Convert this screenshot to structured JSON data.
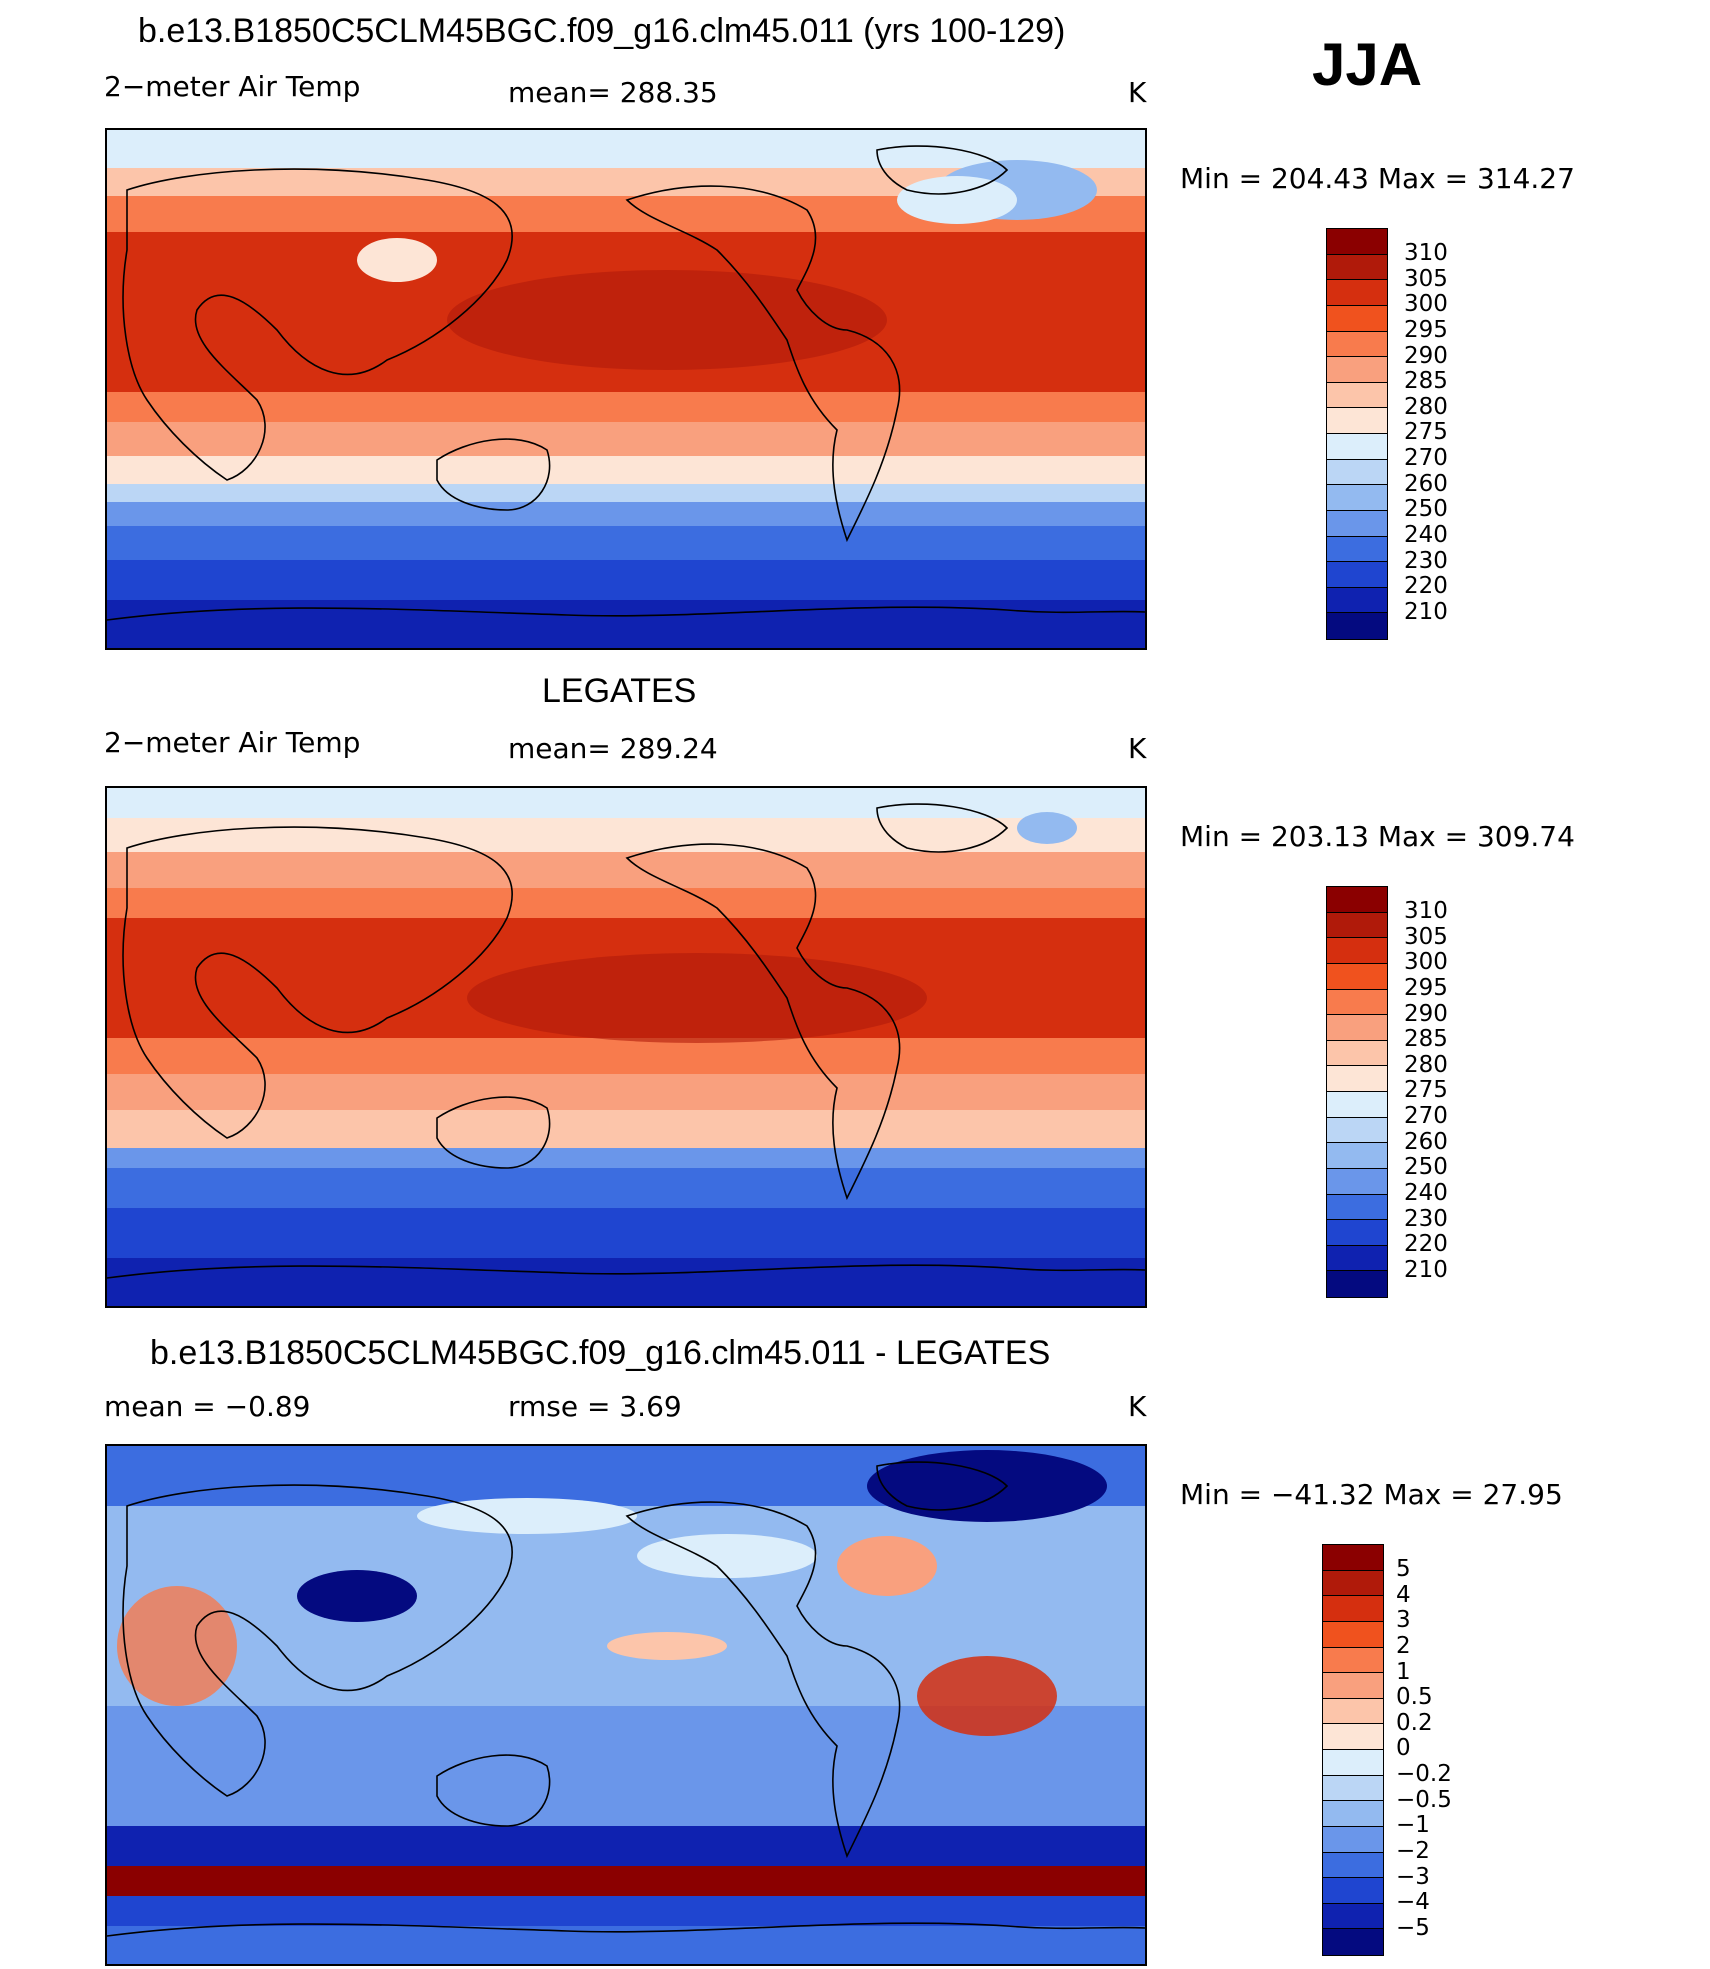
{
  "season": "JJA",
  "units": "K",
  "panels": [
    {
      "title": "b.e13.B1850C5CLM45BGC.f09_g16.clm45.011 (yrs 100-129)",
      "left_label": "2−meter Air Temp",
      "center_label": "mean=  288.35",
      "units": "K",
      "minmax": "Min  =  204.43  Max  =  314.27",
      "colorbar": {
        "labels": [
          "310",
          "305",
          "300",
          "295",
          "290",
          "285",
          "280",
          "275",
          "270",
          "260",
          "250",
          "240",
          "230",
          "220",
          "210"
        ],
        "colors": [
          "#8b0000",
          "#b01a0a",
          "#d52f0f",
          "#f0521e",
          "#f87b4d",
          "#f9a07e",
          "#fcc5aa",
          "#fde5d6",
          "#dceefb",
          "#bbd6f5",
          "#93baf0",
          "#6a96ea",
          "#3c6de0",
          "#1f45d0",
          "#0f22b0",
          "#040a80"
        ]
      }
    },
    {
      "title": "LEGATES",
      "left_label": "2−meter Air Temp",
      "center_label": "mean=  289.24",
      "units": "K",
      "minmax": "Min  =  203.13  Max  =  309.74",
      "colorbar": {
        "labels": [
          "310",
          "305",
          "300",
          "295",
          "290",
          "285",
          "280",
          "275",
          "270",
          "260",
          "250",
          "240",
          "230",
          "220",
          "210"
        ],
        "colors": [
          "#8b0000",
          "#b01a0a",
          "#d52f0f",
          "#f0521e",
          "#f87b4d",
          "#f9a07e",
          "#fcc5aa",
          "#fde5d6",
          "#dceefb",
          "#bbd6f5",
          "#93baf0",
          "#6a96ea",
          "#3c6de0",
          "#1f45d0",
          "#0f22b0",
          "#040a80"
        ]
      }
    },
    {
      "title": "b.e13.B1850C5CLM45BGC.f09_g16.clm45.011 - LEGATES",
      "left_label": "mean  =    −0.89",
      "center_label": "rmse  =     3.69",
      "units": "K",
      "minmax": "Min  =  −41.32  Max  =    27.95",
      "colorbar": {
        "labels": [
          "5",
          "4",
          "3",
          "2",
          "1",
          "0.5",
          "0.2",
          "0",
          "−0.2",
          "−0.5",
          "−1",
          "−2",
          "−3",
          "−4",
          "−5"
        ],
        "colors": [
          "#8b0000",
          "#b01a0a",
          "#d52f0f",
          "#f0521e",
          "#f87b4d",
          "#f9a07e",
          "#fcc5aa",
          "#fde5d6",
          "#dceefb",
          "#bbd6f5",
          "#93baf0",
          "#6a96ea",
          "#3c6de0",
          "#1f45d0",
          "#0f22b0",
          "#040a80"
        ]
      }
    }
  ]
}
